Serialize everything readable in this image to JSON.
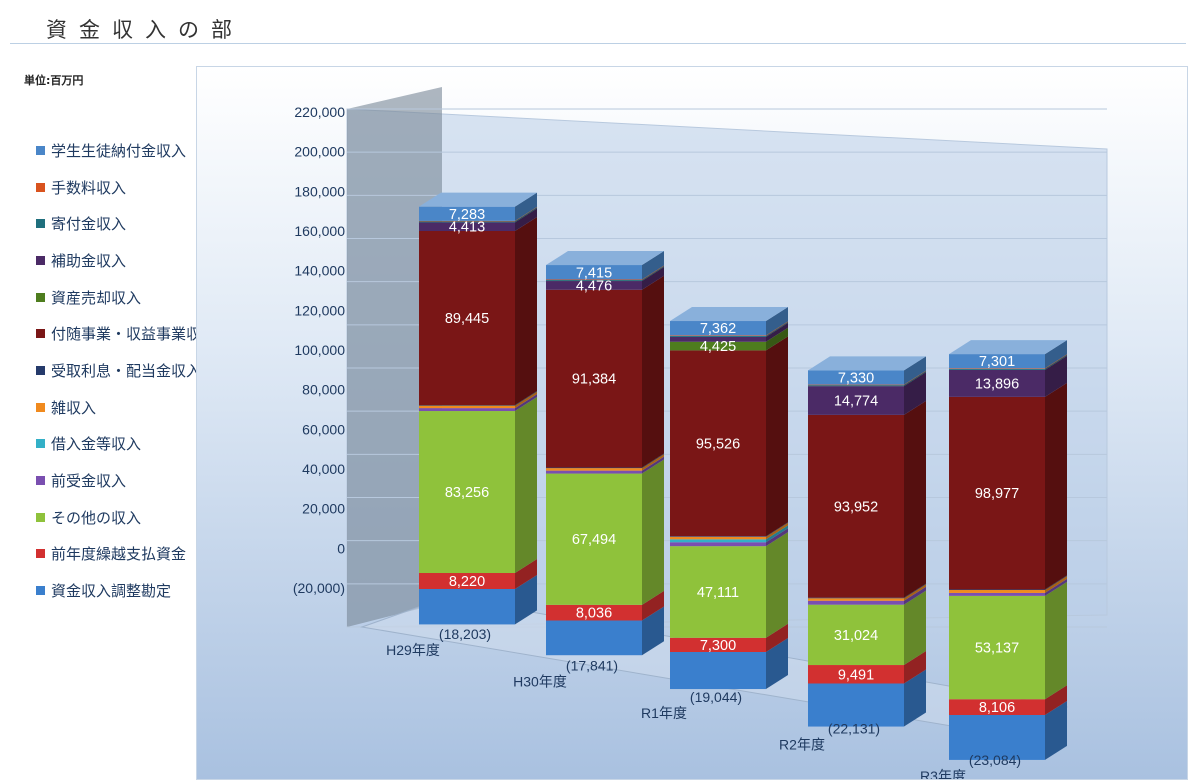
{
  "page_title": "資金収入の部",
  "unit_label": "単位:百万円",
  "legend": [
    {
      "label": "学生生徒納付金収入",
      "color": "#4a86c8"
    },
    {
      "label": "手数料収入",
      "color": "#d9531e"
    },
    {
      "label": "寄付金収入",
      "color": "#1f6f7d"
    },
    {
      "label": "補助金収入",
      "color": "#4b2a66"
    },
    {
      "label": "資産売却収入",
      "color": "#4e7d1e"
    },
    {
      "label": "付随事業・収益事業収入",
      "color": "#7a1616"
    },
    {
      "label": "受取利息・配当金収入",
      "color": "#253a6b"
    },
    {
      "label": "雑収入",
      "color": "#f08a1e"
    },
    {
      "label": "借入金等収入",
      "color": "#33b0c7"
    },
    {
      "label": "前受金収入",
      "color": "#7a4fb0"
    },
    {
      "label": "その他の収入",
      "color": "#8fc23b"
    },
    {
      "label": "前年度繰越支払資金",
      "color": "#d23030"
    },
    {
      "label": "資金収入調整勘定",
      "color": "#3a7fcd"
    }
  ],
  "chart_data": {
    "type": "bar",
    "stacked": true,
    "style": "3d-column",
    "categories": [
      "H29年度",
      "H30年度",
      "R1年度",
      "R2年度",
      "R3年度"
    ],
    "ylim": [
      -20000,
      220000
    ],
    "yticks": [
      "(20,000)",
      "0",
      "20,000",
      "40,000",
      "60,000",
      "80,000",
      "100,000",
      "120,000",
      "140,000",
      "160,000",
      "180,000",
      "200,000",
      "220,000"
    ],
    "negative_labels": [
      "(18,203)",
      "(17,841)",
      "(19,044)",
      "(22,131)",
      "(23,084)"
    ],
    "series": [
      {
        "name": "資金収入調整勘定",
        "values": [
          -18203,
          -17841,
          -19044,
          -22131,
          -23084
        ]
      },
      {
        "name": "前年度繰越支払資金",
        "values": [
          8220,
          8036,
          7300,
          9491,
          8106
        ]
      },
      {
        "name": "その他の収入",
        "values": [
          83256,
          67494,
          47111,
          31024,
          53137
        ]
      },
      {
        "name": "前受金収入",
        "values": [
          1500,
          1500,
          2000,
          2000,
          1500
        ]
      },
      {
        "name": "借入金等収入",
        "values": [
          0,
          0,
          1500,
          0,
          0
        ]
      },
      {
        "name": "雑収入",
        "values": [
          1300,
          1300,
          1300,
          1300,
          1500
        ]
      },
      {
        "name": "受取利息・配当金収入",
        "values": [
          300,
          300,
          300,
          300,
          300
        ]
      },
      {
        "name": "付随事業・収益事業収入",
        "values": [
          89445,
          91384,
          95526,
          93952,
          98977
        ]
      },
      {
        "name": "資産売却収入",
        "values": [
          0,
          0,
          4425,
          0,
          0
        ]
      },
      {
        "name": "補助金収入",
        "values": [
          4413,
          4476,
          2500,
          14774,
          13896
        ]
      },
      {
        "name": "寄付金収入",
        "values": [
          500,
          500,
          500,
          500,
          500
        ]
      },
      {
        "name": "手数料収入",
        "values": [
          300,
          300,
          300,
          300,
          300
        ]
      },
      {
        "name": "学生生徒納付金収入",
        "values": [
          7283,
          7415,
          7362,
          7330,
          7301
        ]
      }
    ],
    "data_labels": [
      {
        "series": "前年度繰越支払資金",
        "values": [
          "8,220",
          "8,036",
          "7,300",
          "9,491",
          "8,106"
        ]
      },
      {
        "series": "その他の収入",
        "values": [
          "83,256",
          "67,494",
          "47,111",
          "31,024",
          "53,137"
        ]
      },
      {
        "series": "付随事業・収益事業収入",
        "values": [
          "89,445",
          "91,384",
          "95,526",
          "93,952",
          "98,977"
        ]
      },
      {
        "series": "資産売却収入",
        "values": [
          "",
          "",
          "4,425",
          "",
          ""
        ]
      },
      {
        "series": "補助金収入",
        "values": [
          "4,413",
          "4,476",
          "",
          "14,774",
          "13,896"
        ]
      },
      {
        "series": "学生生徒納付金収入",
        "values": [
          "7,283",
          "7,415",
          "7,362",
          "7,330",
          "7,301"
        ]
      }
    ]
  }
}
